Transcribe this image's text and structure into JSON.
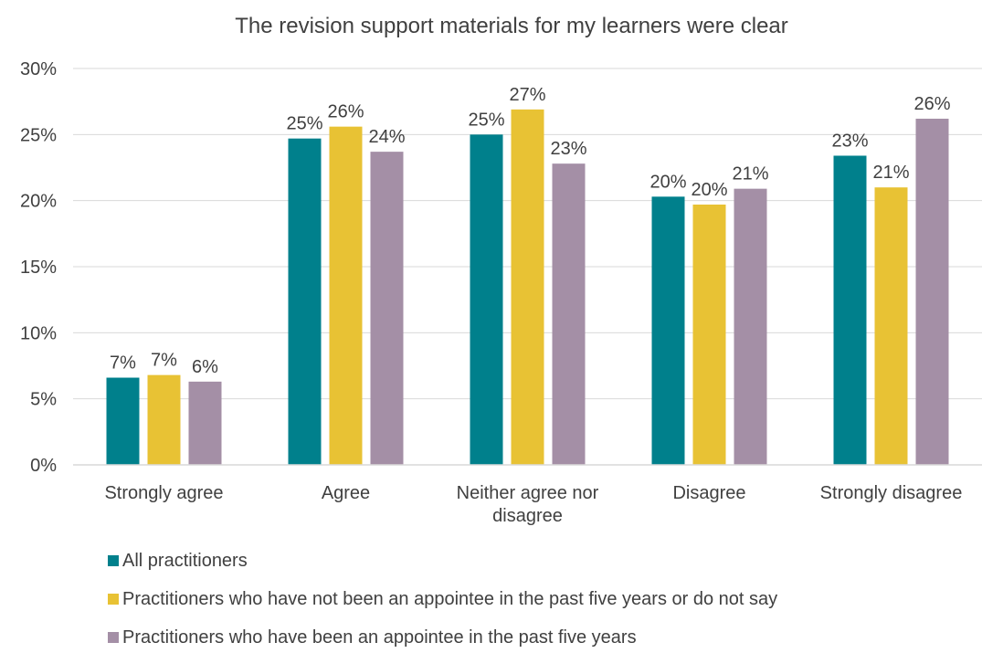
{
  "chart_data": {
    "type": "bar",
    "title": "The revision support materials for my learners were clear",
    "xlabel": "",
    "ylabel": "",
    "ylim": [
      0,
      30
    ],
    "y_ticks": [
      "0%",
      "5%",
      "10%",
      "15%",
      "20%",
      "25%",
      "30%"
    ],
    "y_tick_values": [
      0,
      5,
      10,
      15,
      20,
      25,
      30
    ],
    "grid": true,
    "legend_position": "bottom",
    "categories": [
      [
        "Strongly agree"
      ],
      [
        "Agree"
      ],
      [
        "Neither agree nor",
        "disagree"
      ],
      [
        "Disagree"
      ],
      [
        "Strongly disagree"
      ]
    ],
    "series": [
      {
        "name": "All practitioners",
        "color": "#00808C",
        "values": [
          6.6,
          24.7,
          25.0,
          20.3,
          23.4
        ],
        "labels": [
          "7%",
          "25%",
          "25%",
          "20%",
          "23%"
        ]
      },
      {
        "name": "Practitioners who have not been an appointee in the past five years or do not say",
        "color": "#E8C234",
        "values": [
          6.8,
          25.6,
          26.9,
          19.7,
          21.0
        ],
        "labels": [
          "7%",
          "26%",
          "27%",
          "20%",
          "21%"
        ]
      },
      {
        "name": "Practitioners who have been an appointee in the past five years",
        "color": "#A48FA6",
        "values": [
          6.3,
          23.7,
          22.8,
          20.9,
          26.2
        ],
        "labels": [
          "6%",
          "24%",
          "23%",
          "21%",
          "26%"
        ]
      }
    ]
  }
}
